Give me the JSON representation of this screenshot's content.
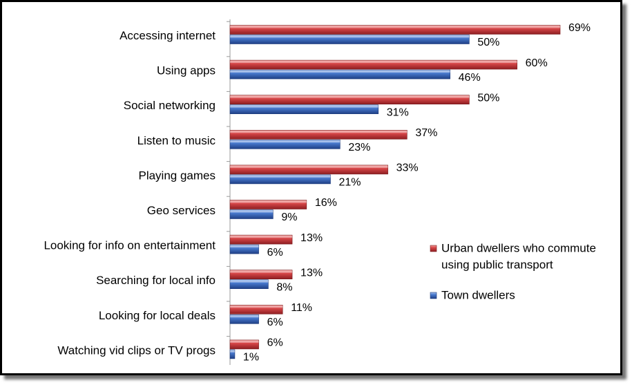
{
  "chart_data": {
    "type": "bar",
    "orientation": "horizontal",
    "title": "",
    "xlabel": "",
    "ylabel": "",
    "xlim": [
      0,
      70
    ],
    "grid": false,
    "legend_position": "right",
    "categories": [
      "Accessing internet",
      "Using apps",
      "Social networking",
      "Listen to music",
      "Playing games",
      "Geo services",
      "Looking for info on entertainment",
      "Searching for local info",
      "Looking for local deals",
      "Watching vid clips or TV progs"
    ],
    "series": [
      {
        "name": "Urban dwellers who commute using public transport",
        "legend_lines": [
          "Urban dwellers who commute",
          "using public transport"
        ],
        "color": "#c0393b",
        "values": [
          69,
          60,
          50,
          37,
          33,
          16,
          13,
          13,
          11,
          6
        ],
        "labels": [
          "69%",
          "60%",
          "50%",
          "37%",
          "33%",
          "16%",
          "13%",
          "13%",
          "11%",
          "6%"
        ]
      },
      {
        "name": "Town dwellers",
        "legend_lines": [
          "Town dwellers"
        ],
        "color": "#3f6fc4",
        "values": [
          50,
          46,
          31,
          23,
          21,
          9,
          6,
          8,
          6,
          1
        ],
        "labels": [
          "50%",
          "46%",
          "31%",
          "23%",
          "21%",
          "9%",
          "6%",
          "8%",
          "6%",
          "1%"
        ]
      }
    ]
  }
}
